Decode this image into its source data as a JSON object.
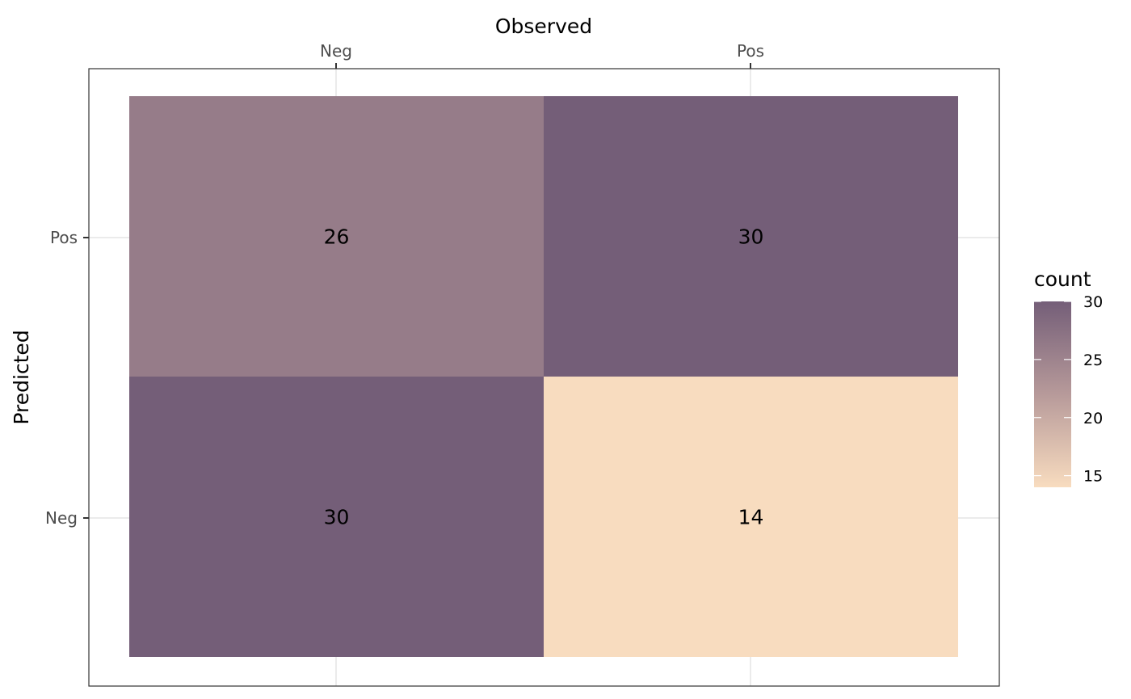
{
  "chart_data": {
    "type": "heatmap",
    "title": "",
    "xlabel": "Observed",
    "ylabel": "Predicted",
    "x_categories": [
      "Neg",
      "Pos"
    ],
    "y_categories": [
      "Neg",
      "Pos"
    ],
    "cells": [
      {
        "observed": "Neg",
        "predicted": "Pos",
        "count": 26
      },
      {
        "observed": "Pos",
        "predicted": "Pos",
        "count": 30
      },
      {
        "observed": "Neg",
        "predicted": "Neg",
        "count": 30
      },
      {
        "observed": "Pos",
        "predicted": "Neg",
        "count": 14
      }
    ],
    "legend": {
      "title": "count",
      "placement": "right",
      "ticks": [
        15,
        20,
        25,
        30
      ],
      "range": [
        14,
        30
      ],
      "low_color": "#F8DCBF",
      "high_color": "#745E78"
    },
    "grid": true
  }
}
